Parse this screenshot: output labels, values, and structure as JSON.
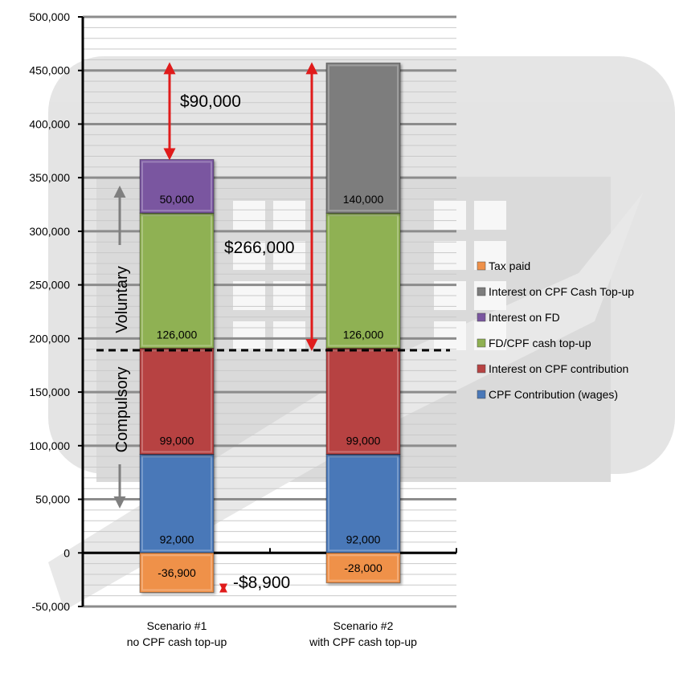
{
  "chart_data": {
    "type": "bar",
    "stacked": true,
    "categories": [
      "Scenario #1\nno CPF cash top-up",
      "Scenario #2\nwith CPF cash top-up"
    ],
    "series": [
      {
        "name": "CPF Contribution (wages)",
        "values": [
          92000,
          92000
        ],
        "color": "#4a78b8",
        "labels": [
          "92,000",
          "92,000"
        ]
      },
      {
        "name": "Interest on CPF contribution",
        "values": [
          99000,
          99000
        ],
        "color": "#b74343",
        "labels": [
          "99,000",
          "99,000"
        ]
      },
      {
        "name": "FD/CPF cash top-up",
        "values": [
          126000,
          126000
        ],
        "color": "#8fb152",
        "labels": [
          "126,000",
          "126,000"
        ]
      },
      {
        "name": "Interest on FD",
        "values": [
          50000,
          0
        ],
        "color": "#7a56a0",
        "labels": [
          "50,000",
          ""
        ]
      },
      {
        "name": "Interest on CPF Cash Top-up",
        "values": [
          0,
          140000
        ],
        "color": "#7d7d7d",
        "labels": [
          "",
          "140,000"
        ]
      },
      {
        "name": "Tax paid",
        "values": [
          -36900,
          -28000
        ],
        "color": "#ef914a",
        "labels": [
          "-36,900",
          "-28,000"
        ]
      }
    ],
    "legend_order": [
      "Tax paid",
      "Interest on CPF Cash Top-up",
      "Interest on FD",
      "FD/CPF cash top-up",
      "Interest on CPF contribution",
      "CPF Contribution (wages)"
    ],
    "ylim": [
      -50000,
      500000
    ],
    "yticks": [
      -50000,
      0,
      50000,
      100000,
      150000,
      200000,
      250000,
      300000,
      350000,
      400000,
      450000,
      500000
    ],
    "ytick_labels": [
      "-50,000",
      "0",
      "50,000",
      "100,000",
      "150,000",
      "200,000",
      "250,000",
      "300,000",
      "350,000",
      "400,000",
      "450,000",
      "500,000"
    ],
    "grid": true,
    "legend_position": "right",
    "divider_value": 189000,
    "annotations": {
      "top_diff": "$90,000",
      "topup_diff": "$266,000",
      "tax_diff": "-$8,900",
      "voluntary": "Voluntary",
      "compulsory": "Compulsory"
    }
  }
}
